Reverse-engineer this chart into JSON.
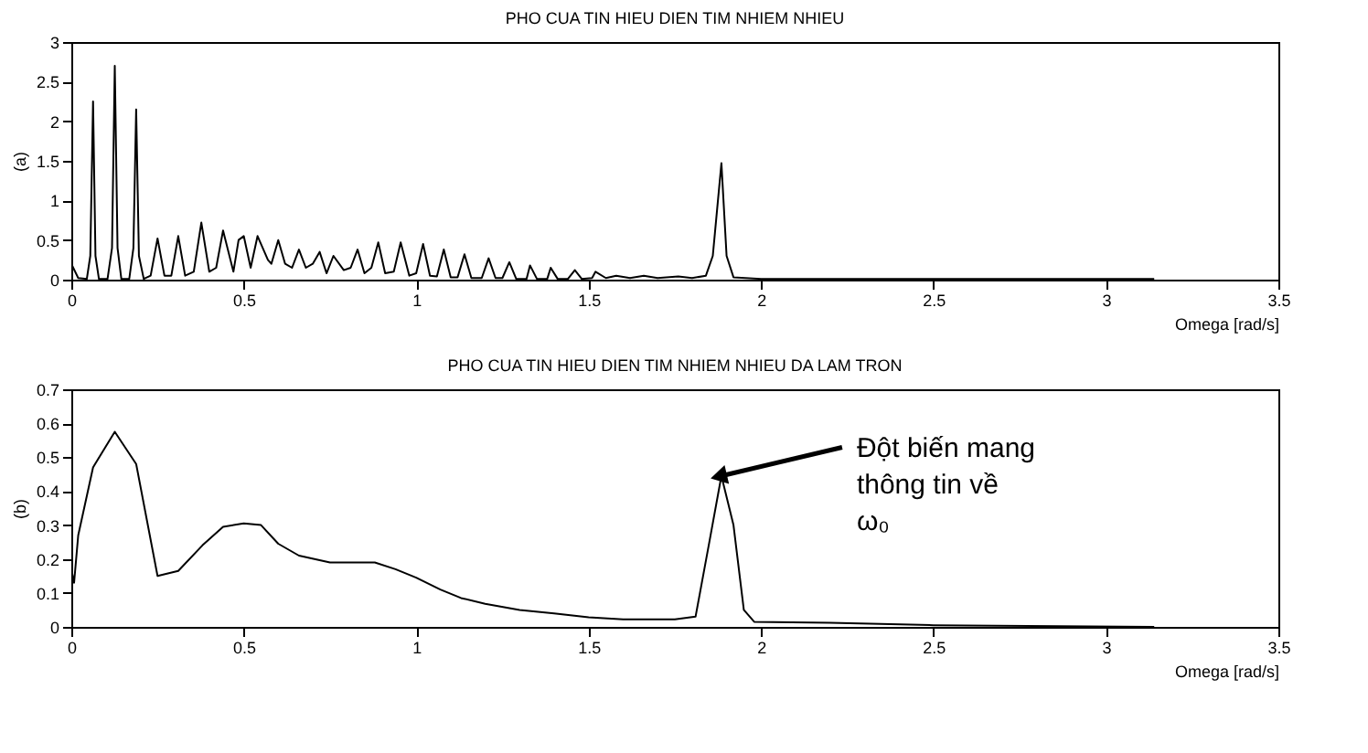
{
  "chart_data": [
    {
      "type": "line",
      "title": "PHO CUA TIN HIEU DIEN TIM NHIEM NHIEU",
      "xlabel": "Omega [rad/s]",
      "ylabel": "(a)",
      "xlim": [
        0,
        3.5
      ],
      "xticks": [
        0,
        0.5,
        1,
        1.5,
        2,
        2.5,
        3,
        3.5
      ],
      "ylim": [
        0,
        3
      ],
      "yticks": [
        0,
        0.5,
        1,
        1.5,
        2,
        2.5,
        3
      ],
      "grid": false,
      "series": [
        {
          "color": "#000000",
          "x": [
            0,
            0.02,
            0.045,
            0.055,
            0.063,
            0.07,
            0.08,
            0.105,
            0.118,
            0.126,
            0.134,
            0.145,
            0.168,
            0.18,
            0.188,
            0.196,
            0.21,
            0.23,
            0.25,
            0.27,
            0.29,
            0.31,
            0.33,
            0.355,
            0.377,
            0.4,
            0.42,
            0.44,
            0.47,
            0.485,
            0.5,
            0.52,
            0.54,
            0.57,
            0.58,
            0.6,
            0.62,
            0.64,
            0.66,
            0.68,
            0.7,
            0.72,
            0.74,
            0.76,
            0.79,
            0.81,
            0.83,
            0.85,
            0.87,
            0.89,
            0.91,
            0.935,
            0.955,
            0.98,
            1.0,
            1.02,
            1.04,
            1.06,
            1.08,
            1.1,
            1.12,
            1.14,
            1.16,
            1.19,
            1.21,
            1.23,
            1.25,
            1.27,
            1.29,
            1.32,
            1.33,
            1.35,
            1.38,
            1.39,
            1.41,
            1.44,
            1.46,
            1.48,
            1.51,
            1.52,
            1.55,
            1.58,
            1.62,
            1.66,
            1.7,
            1.76,
            1.8,
            1.84,
            1.86,
            1.885,
            1.9,
            1.92,
            2.0,
            2.5,
            3.14
          ],
          "values": [
            0.2,
            0.02,
            0.01,
            0.3,
            2.25,
            0.3,
            0.01,
            0.01,
            0.4,
            2.7,
            0.4,
            0.01,
            0.01,
            0.4,
            2.15,
            0.3,
            0.01,
            0.05,
            0.52,
            0.05,
            0.05,
            0.55,
            0.05,
            0.1,
            0.72,
            0.1,
            0.15,
            0.62,
            0.1,
            0.5,
            0.55,
            0.15,
            0.55,
            0.25,
            0.2,
            0.5,
            0.2,
            0.15,
            0.38,
            0.15,
            0.2,
            0.35,
            0.08,
            0.3,
            0.12,
            0.15,
            0.38,
            0.08,
            0.15,
            0.47,
            0.08,
            0.1,
            0.47,
            0.05,
            0.08,
            0.45,
            0.05,
            0.04,
            0.38,
            0.03,
            0.03,
            0.32,
            0.02,
            0.02,
            0.27,
            0.02,
            0.02,
            0.22,
            0.01,
            0.01,
            0.18,
            0.01,
            0.01,
            0.15,
            0.01,
            0.01,
            0.12,
            0.01,
            0.02,
            0.1,
            0.02,
            0.05,
            0.02,
            0.05,
            0.02,
            0.04,
            0.02,
            0.05,
            0.3,
            1.47,
            0.3,
            0.03,
            0.01,
            0.01,
            0.01
          ]
        }
      ]
    },
    {
      "type": "line",
      "title": "PHO CUA TIN HIEU DIEN TIM NHIEM NHIEU DA LAM TRON",
      "xlabel": "Omega [rad/s]",
      "ylabel": "(b)",
      "xlim": [
        0,
        3.5
      ],
      "xticks": [
        0,
        0.5,
        1,
        1.5,
        2,
        2.5,
        3,
        3.5
      ],
      "ylim": [
        0,
        0.7
      ],
      "yticks": [
        0,
        0.1,
        0.2,
        0.3,
        0.4,
        0.5,
        0.6,
        0.7
      ],
      "grid": false,
      "series": [
        {
          "color": "#000000",
          "x": [
            0,
            0.008,
            0.02,
            0.063,
            0.126,
            0.188,
            0.25,
            0.31,
            0.38,
            0.44,
            0.5,
            0.55,
            0.6,
            0.66,
            0.75,
            0.88,
            0.94,
            1.0,
            1.07,
            1.13,
            1.2,
            1.3,
            1.4,
            1.5,
            1.6,
            1.75,
            1.81,
            1.85,
            1.885,
            1.92,
            1.95,
            1.98,
            2.2,
            2.5,
            3.14
          ],
          "values": [
            0.17,
            0.13,
            0.27,
            0.47,
            0.575,
            0.48,
            0.15,
            0.165,
            0.24,
            0.295,
            0.305,
            0.3,
            0.245,
            0.21,
            0.19,
            0.19,
            0.17,
            0.145,
            0.11,
            0.085,
            0.068,
            0.05,
            0.04,
            0.028,
            0.022,
            0.022,
            0.03,
            0.25,
            0.445,
            0.3,
            0.05,
            0.015,
            0.012,
            0.005,
            0.0
          ]
        }
      ],
      "annotations": [
        {
          "text": "Đột biến mang\nthông tin về\nω₀",
          "x": 1.885,
          "y": 0.445
        }
      ]
    }
  ]
}
